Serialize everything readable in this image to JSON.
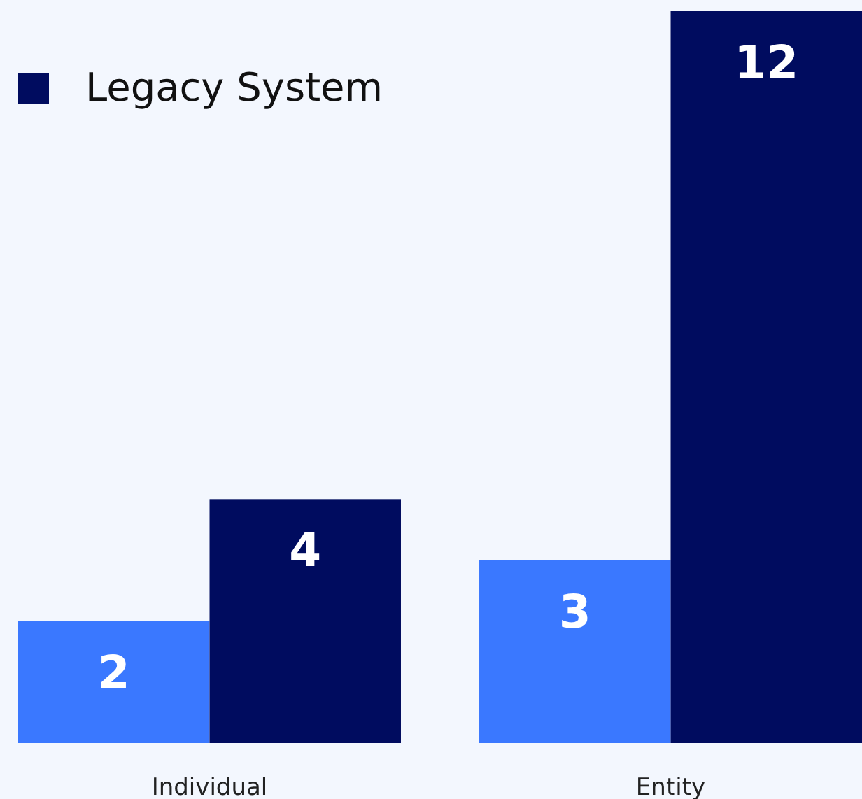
{
  "chart_data": {
    "type": "bar",
    "categories": [
      "Individual",
      "Entity"
    ],
    "series": [
      {
        "color": "#3a78ff",
        "values": [
          2,
          3
        ]
      },
      {
        "name": "Legacy System",
        "color": "#000c5f",
        "values": [
          4,
          12
        ]
      }
    ],
    "data_labels": true,
    "legend": "top left",
    "grid": false
  }
}
